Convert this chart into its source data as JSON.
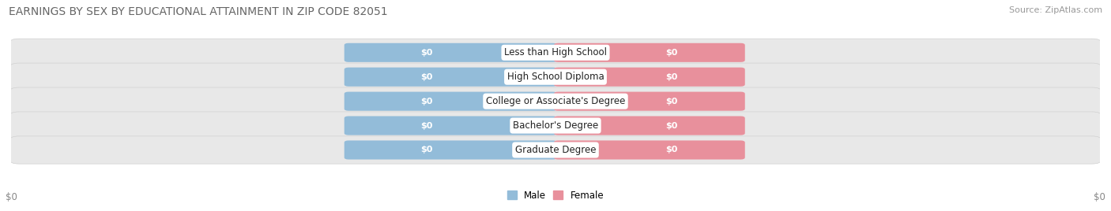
{
  "title": "EARNINGS BY SEX BY EDUCATIONAL ATTAINMENT IN ZIP CODE 82051",
  "source": "Source: ZipAtlas.com",
  "categories": [
    "Less than High School",
    "High School Diploma",
    "College or Associate's Degree",
    "Bachelor's Degree",
    "Graduate Degree"
  ],
  "male_values": [
    0,
    0,
    0,
    0,
    0
  ],
  "female_values": [
    0,
    0,
    0,
    0,
    0
  ],
  "male_color": "#93bcd9",
  "female_color": "#e8909c",
  "male_label": "Male",
  "female_label": "Female",
  "bar_label": "$0",
  "title_fontsize": 10,
  "source_fontsize": 8,
  "axis_label_left": "$0",
  "axis_label_right": "$0",
  "bg_color": "#ffffff",
  "row_bg_color": "#e8e8e8",
  "row_bg_edge_color": "#d0d0d0"
}
